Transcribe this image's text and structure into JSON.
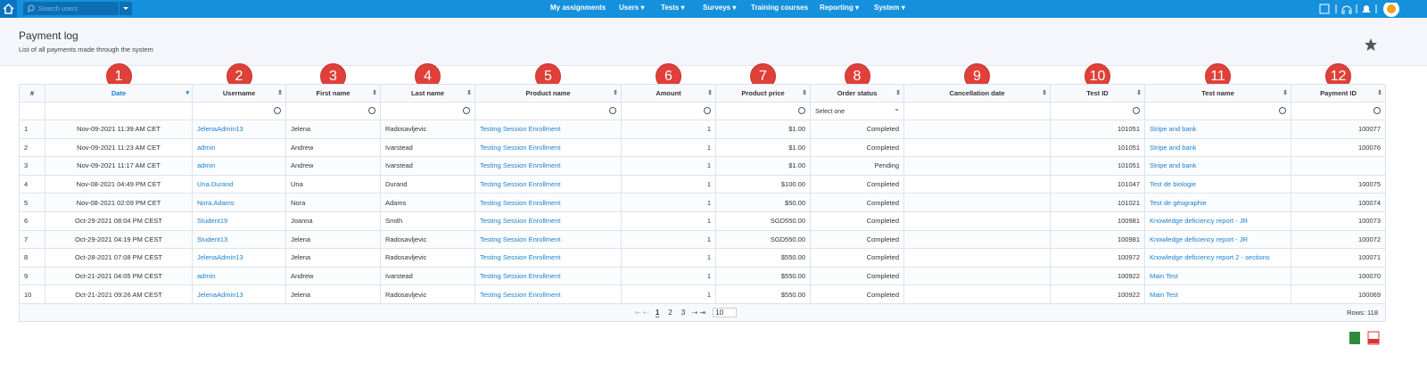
{
  "nav": {
    "search_placeholder": "Search users",
    "items": [
      "My assignments",
      "Users",
      "Tests",
      "Surveys",
      "Training courses",
      "Reporting",
      "System"
    ]
  },
  "header": {
    "title": "Payment log",
    "subtitle": "List of all payments made through the system"
  },
  "table": {
    "markers": [
      1,
      2,
      3,
      4,
      5,
      6,
      7,
      8,
      9,
      10,
      11,
      12
    ],
    "columns": [
      "#",
      "Date",
      "Username",
      "First name",
      "Last name",
      "Product name",
      "Amount",
      "Product price",
      "Order status",
      "Cancellation date",
      "Test ID",
      "Test name",
      "Payment ID"
    ],
    "filter_select": "Select one",
    "rows": [
      [
        "1",
        "Nov-09-2021 11:39 AM CET",
        "JelenaAdmin13",
        "Jelena",
        "Radosavljevic",
        "Testing Session Enrollment",
        "1",
        "$1.00",
        "Completed",
        null,
        "101051",
        "Stripe and bank",
        "100077"
      ],
      [
        "2",
        "Nov-09-2021 11:23 AM CET",
        "admin",
        "Andrew",
        "Ivarstead",
        "Testing Session Enrollment",
        "1",
        "$1.00",
        "Completed",
        null,
        "101051",
        "Stripe and bank",
        "100076"
      ],
      [
        "3",
        "Nov-09-2021 11:17 AM CET",
        "admin",
        "Andrew",
        "Ivarstead",
        "Testing Session Enrollment",
        "1",
        "$1.00",
        "Pending",
        null,
        "101051",
        "Stripe and bank",
        null
      ],
      [
        "4",
        "Nov-08-2021 04:49 PM CET",
        "Una.Durand",
        "Una",
        "Durand",
        "Testing Session Enrollment",
        "1",
        "$100.00",
        "Completed",
        null,
        "101047",
        "Test de biologie",
        "100075"
      ],
      [
        "5",
        "Nov-08-2021 02:09 PM CET",
        "Nora.Adams",
        "Nora",
        "Adams",
        "Testing Session Enrollment",
        "1",
        "$50.00",
        "Completed",
        null,
        "101021",
        "Test de géographie",
        "100074"
      ],
      [
        "6",
        "Oct-29-2021 08:04 PM CEST",
        "Student19",
        "Joanna",
        "Smith",
        "Testing Session Enrollment",
        "1",
        "SGD550.00",
        "Completed",
        null,
        "100981",
        "Knowledge deficiency report - JR",
        "100073"
      ],
      [
        "7",
        "Oct-29-2021 04:19 PM CEST",
        "Student13",
        "Jelena",
        "Radosavljevic",
        "Testing Session Enrollment",
        "1",
        "SGD550.00",
        "Completed",
        null,
        "100981",
        "Knowledge deficiency report - JR",
        "100072"
      ],
      [
        "8",
        "Oct-28-2021 07:08 PM CEST",
        "JelenaAdmin13",
        "Jelena",
        "Radosavljevic",
        "Testing Session Enrollment",
        "1",
        "$550.00",
        "Completed",
        null,
        "100972",
        "Knowledge deficiency report 2 - sections",
        "100071"
      ],
      [
        "9",
        "Oct-21-2021 04:05 PM CEST",
        "admin",
        "Andrew",
        "Ivarstead",
        "Testing Session Enrollment",
        "1",
        "$550.00",
        "Completed",
        null,
        "100922",
        "Main Test",
        "100070"
      ],
      [
        "10",
        "Oct-21-2021 09:26 AM CEST",
        "JelenaAdmin13",
        "Jelena",
        "Radosavljevic",
        "Testing Session Enrollment",
        "1",
        "$550.00",
        "Completed",
        null,
        "100922",
        "Main Test",
        "100069"
      ]
    ],
    "pagination": {
      "pages": [
        "1",
        "2",
        "3"
      ],
      "page_size": "10",
      "rows_label": "Rows: 118"
    }
  }
}
